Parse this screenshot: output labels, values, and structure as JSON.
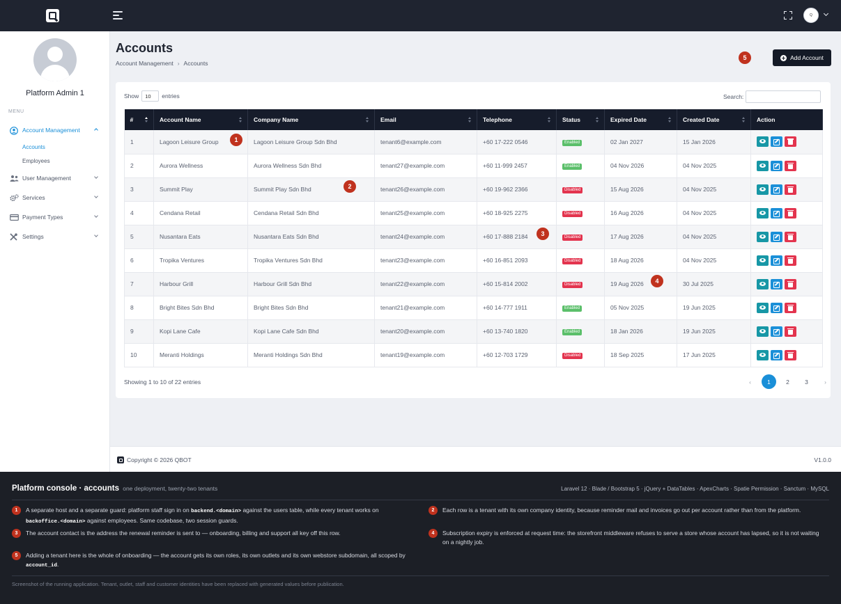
{
  "topbar": {
    "avatar_label": "Q",
    "colors": {
      "bg": "#1f2430"
    }
  },
  "sidebar": {
    "admin_name": "Platform Admin 1",
    "menu_label": "MENU",
    "items": [
      {
        "label": "Account Management",
        "icon": "user-circle-icon",
        "active": true
      },
      {
        "label": "User Management",
        "icon": "users-icon"
      },
      {
        "label": "Services",
        "icon": "cogs-icon"
      },
      {
        "label": "Payment Types",
        "icon": "credit-card-icon"
      },
      {
        "label": "Settings",
        "icon": "tools-icon"
      }
    ],
    "sub_items": [
      "Accounts",
      "Employees"
    ]
  },
  "page": {
    "title": "Accounts",
    "breadcrumb": [
      "Account Management",
      "Accounts"
    ],
    "add_button": "Add Account"
  },
  "table": {
    "show_label": "Show",
    "entries_value": "10",
    "entries_label": "entries",
    "search_label": "Search:",
    "search_value": "",
    "columns": [
      "#",
      "Account Name",
      "Company Name",
      "Email",
      "Telephone",
      "Status",
      "Expired Date",
      "Created Date",
      "Action"
    ],
    "rows": [
      {
        "n": "1",
        "account": "Lagoon Leisure Group",
        "company": "Lagoon Leisure Group Sdn Bhd",
        "email": "tenant6@example.com",
        "tel": "+60 17-222 0546",
        "status": "Enabled",
        "expired": "02 Jan 2027",
        "created": "15 Jan 2026"
      },
      {
        "n": "2",
        "account": "Aurora Wellness",
        "company": "Aurora Wellness Sdn Bhd",
        "email": "tenant27@example.com",
        "tel": "+60 11-999 2457",
        "status": "Enabled",
        "expired": "04 Nov 2026",
        "created": "04 Nov 2025"
      },
      {
        "n": "3",
        "account": "Summit Play",
        "company": "Summit Play Sdn Bhd",
        "email": "tenant26@example.com",
        "tel": "+60 19-962 2366",
        "status": "Disabled",
        "expired": "15 Aug 2026",
        "created": "04 Nov 2025"
      },
      {
        "n": "4",
        "account": "Cendana Retail",
        "company": "Cendana Retail Sdn Bhd",
        "email": "tenant25@example.com",
        "tel": "+60 18-925 2275",
        "status": "Disabled",
        "expired": "16 Aug 2026",
        "created": "04 Nov 2025"
      },
      {
        "n": "5",
        "account": "Nusantara Eats",
        "company": "Nusantara Eats Sdn Bhd",
        "email": "tenant24@example.com",
        "tel": "+60 17-888 2184",
        "status": "Disabled",
        "expired": "17 Aug 2026",
        "created": "04 Nov 2025"
      },
      {
        "n": "6",
        "account": "Tropika Ventures",
        "company": "Tropika Ventures Sdn Bhd",
        "email": "tenant23@example.com",
        "tel": "+60 16-851 2093",
        "status": "Disabled",
        "expired": "18 Aug 2026",
        "created": "04 Nov 2025"
      },
      {
        "n": "7",
        "account": "Harbour Grill",
        "company": "Harbour Grill Sdn Bhd",
        "email": "tenant22@example.com",
        "tel": "+60 15-814 2002",
        "status": "Disabled",
        "expired": "19 Aug 2026",
        "created": "30 Jul 2025"
      },
      {
        "n": "8",
        "account": "Bright Bites Sdn Bhd",
        "company": "Bright Bites Sdn Bhd",
        "email": "tenant21@example.com",
        "tel": "+60 14-777 1911",
        "status": "Enabled",
        "expired": "05 Nov 2025",
        "created": "19 Jun 2025"
      },
      {
        "n": "9",
        "account": "Kopi Lane Cafe",
        "company": "Kopi Lane Cafe Sdn Bhd",
        "email": "tenant20@example.com",
        "tel": "+60 13-740 1820",
        "status": "Enabled",
        "expired": "18 Jan 2026",
        "created": "19 Jun 2025"
      },
      {
        "n": "10",
        "account": "Meranti Holdings",
        "company": "Meranti Holdings Sdn Bhd",
        "email": "tenant19@example.com",
        "tel": "+60 12-703 1729",
        "status": "Disabled",
        "expired": "18 Sep 2025",
        "created": "17 Jun 2025"
      }
    ],
    "showing": "Showing 1 to 10 of 22 entries",
    "pages": [
      "1",
      "2",
      "3"
    ],
    "prev": "‹",
    "next": "›"
  },
  "markers": [
    "1",
    "2",
    "3",
    "4",
    "5"
  ],
  "footer": {
    "copyright": "Copyright © 2026 QBOT",
    "version": "V1.0.0"
  },
  "notes": {
    "title": "Platform console · accounts",
    "subtitle": "one deployment, twenty-two tenants",
    "stack": "Laravel 12 · Blade / Bootstrap 5 · jQuery + DataTables · ApexCharts · Spatie Permission · Sanctum · MySQL",
    "items": [
      {
        "num": "1",
        "pre": "A separate host and a separate guard: platform staff sign in on ",
        "code1": "backend.<domain>",
        "mid": " against the users table, while every tenant works on ",
        "code2": "backoffice.<domain>",
        "post": " against employees. Same codebase, two session guards."
      },
      {
        "num": "2",
        "text": "Each row is a tenant with its own company identity, because reminder mail and invoices go out per account rather than from the platform."
      },
      {
        "num": "3",
        "text": "The account contact is the address the renewal reminder is sent to — onboarding, billing and support all key off this row."
      },
      {
        "num": "4",
        "text": "Subscription expiry is enforced at request time: the storefront middleware refuses to serve a store whose account has lapsed, so it is not waiting on a nightly job."
      },
      {
        "num": "5",
        "pre": "Adding a tenant here is the whole of onboarding — the account gets its own roles, its own outlets and its own webstore subdomain, all scoped by ",
        "code1": "account_id",
        "post": "."
      }
    ],
    "disclaimer": "Screenshot of the running application. Tenant, outlet, staff and customer identities have been replaced with generated values before publication."
  }
}
